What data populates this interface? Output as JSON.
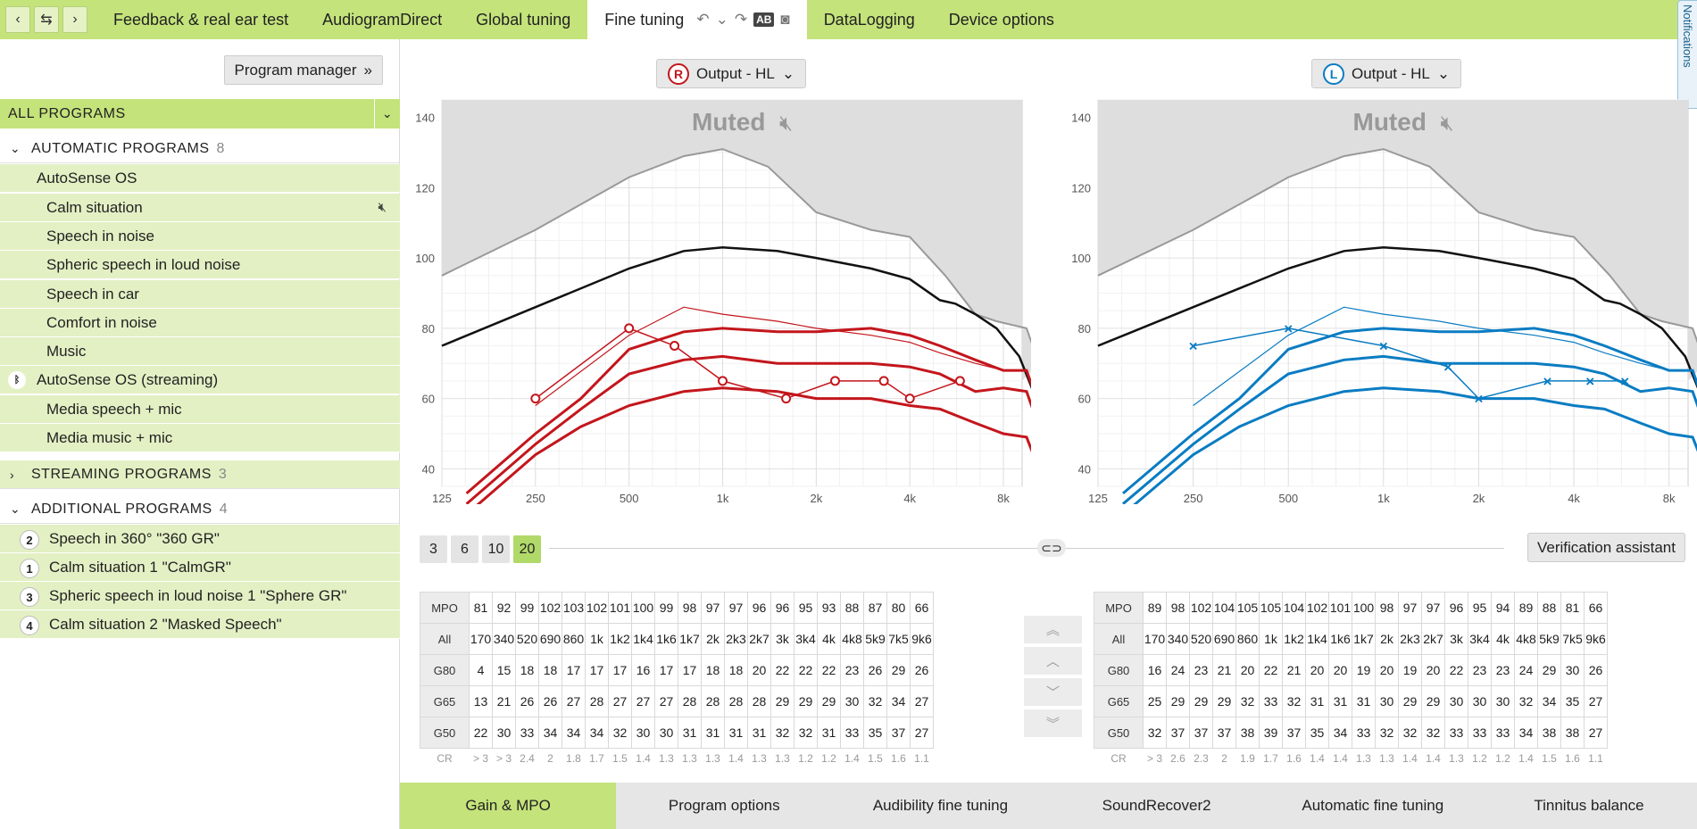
{
  "topbar": {
    "tabs": [
      "Feedback & real ear test",
      "AudiogramDirect",
      "Global tuning",
      "Fine tuning",
      "DataLogging",
      "Device options"
    ],
    "active_tab": "Fine tuning",
    "ab_label": "AB",
    "notifications_label": "Notifications"
  },
  "sidebar": {
    "program_manager": "Program manager",
    "all_programs": "ALL PROGRAMS",
    "groups": [
      {
        "label": "AUTOMATIC PROGRAMS",
        "count": "8"
      },
      {
        "label": "STREAMING PROGRAMS",
        "count": "3"
      },
      {
        "label": "ADDITIONAL PROGRAMS",
        "count": "4"
      }
    ],
    "automatic_programs": [
      "AutoSense OS",
      "Calm situation",
      "Speech in noise",
      "Spheric speech in loud noise",
      "Speech in car",
      "Comfort in noise",
      "Music",
      "AutoSense OS (streaming)",
      "Media speech + mic",
      "Media music + mic"
    ],
    "additional_programs": [
      {
        "num": "2",
        "label": "Speech in 360° \"360 GR\""
      },
      {
        "num": "1",
        "label": "Calm situation 1 \"CalmGR\""
      },
      {
        "num": "3",
        "label": "Spheric speech in loud noise 1 \"Sphere GR\""
      },
      {
        "num": "4",
        "label": "Calm situation 2 \"Masked Speech\""
      }
    ]
  },
  "right_panel": {
    "ear_letter": "R",
    "selector": "Output - HL",
    "muted": "Muted",
    "color": "#c3161c"
  },
  "left_panel": {
    "ear_letter": "L",
    "selector": "Output - HL",
    "muted": "Muted",
    "color": "#0a7cc2"
  },
  "chart_axes": {
    "y_ticks": [
      "140",
      "120",
      "100",
      "80",
      "60",
      "40"
    ],
    "x_ticks": [
      "125",
      "250",
      "500",
      "1k",
      "2k",
      "4k",
      "8k"
    ]
  },
  "band_buttons": [
    "3",
    "6",
    "10",
    "20"
  ],
  "active_band": "20",
  "verification_assistant": "Verification assistant",
  "tables": {
    "row_labels": [
      "MPO",
      "All",
      "G80",
      "G65",
      "G50",
      "CR"
    ],
    "freqs": [
      "170",
      "340",
      "520",
      "690",
      "860",
      "1k",
      "1k2",
      "1k4",
      "1k6",
      "1k7",
      "2k",
      "2k3",
      "2k7",
      "3k",
      "3k4",
      "4k",
      "4k8",
      "5k9",
      "7k5",
      "9k6"
    ],
    "right": {
      "MPO": [
        "81",
        "92",
        "99",
        "102",
        "103",
        "102",
        "101",
        "100",
        "99",
        "98",
        "97",
        "97",
        "96",
        "96",
        "95",
        "93",
        "88",
        "87",
        "80",
        "66"
      ],
      "G80": [
        "4",
        "15",
        "18",
        "18",
        "17",
        "17",
        "17",
        "16",
        "17",
        "17",
        "18",
        "18",
        "20",
        "22",
        "22",
        "22",
        "23",
        "26",
        "29",
        "26"
      ],
      "G65": [
        "13",
        "21",
        "26",
        "26",
        "27",
        "28",
        "27",
        "27",
        "27",
        "28",
        "28",
        "28",
        "28",
        "29",
        "29",
        "29",
        "30",
        "32",
        "34",
        "27"
      ],
      "G50": [
        "22",
        "30",
        "33",
        "34",
        "34",
        "34",
        "32",
        "30",
        "30",
        "31",
        "31",
        "31",
        "31",
        "32",
        "32",
        "31",
        "33",
        "35",
        "37",
        "27"
      ],
      "CR": [
        "> 3",
        "> 3",
        "2.4",
        "2",
        "1.8",
        "1.7",
        "1.5",
        "1.4",
        "1.3",
        "1.3",
        "1.3",
        "1.4",
        "1.3",
        "1.3",
        "1.2",
        "1.2",
        "1.4",
        "1.5",
        "1.6",
        "1.1"
      ]
    },
    "left": {
      "MPO": [
        "89",
        "98",
        "102",
        "104",
        "105",
        "105",
        "104",
        "102",
        "101",
        "100",
        "98",
        "97",
        "97",
        "96",
        "95",
        "94",
        "89",
        "88",
        "81",
        "66"
      ],
      "G80": [
        "16",
        "24",
        "23",
        "21",
        "20",
        "22",
        "21",
        "20",
        "20",
        "19",
        "20",
        "19",
        "20",
        "22",
        "23",
        "23",
        "24",
        "29",
        "30",
        "26"
      ],
      "G65": [
        "25",
        "29",
        "29",
        "29",
        "32",
        "33",
        "32",
        "31",
        "31",
        "31",
        "30",
        "29",
        "29",
        "30",
        "30",
        "30",
        "32",
        "34",
        "35",
        "27"
      ],
      "G50": [
        "32",
        "37",
        "37",
        "37",
        "38",
        "39",
        "37",
        "35",
        "34",
        "33",
        "32",
        "32",
        "32",
        "33",
        "33",
        "33",
        "34",
        "38",
        "38",
        "27"
      ],
      "CR": [
        "> 3",
        "2.6",
        "2.3",
        "2",
        "1.9",
        "1.7",
        "1.6",
        "1.4",
        "1.4",
        "1.3",
        "1.3",
        "1.4",
        "1.4",
        "1.3",
        "1.2",
        "1.2",
        "1.4",
        "1.5",
        "1.6",
        "1.1"
      ]
    }
  },
  "bottom_tabs": [
    "Gain & MPO",
    "Program options",
    "Audibility fine tuning",
    "SoundRecover2",
    "Automatic fine tuning",
    "Tinnitus balance"
  ],
  "active_bottom_tab": "Gain & MPO"
}
